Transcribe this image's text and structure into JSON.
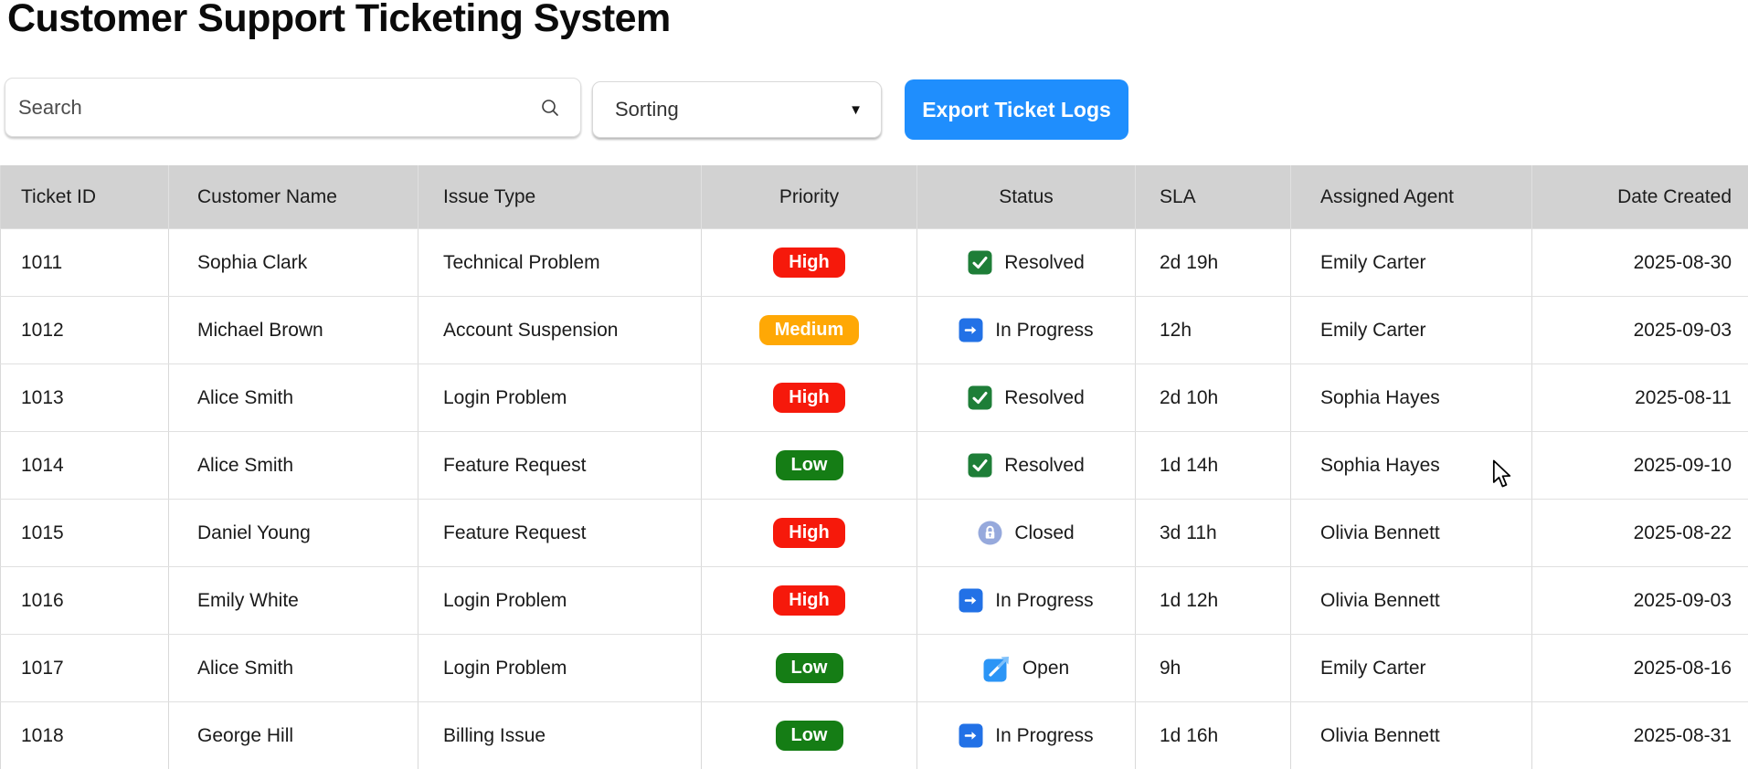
{
  "page": {
    "title": "Customer Support Ticketing System"
  },
  "controls": {
    "search_placeholder": "Search",
    "sorting_label": "Sorting",
    "export_button": "Export Ticket Logs"
  },
  "table": {
    "columns": [
      "Ticket ID",
      "Customer Name",
      "Issue Type",
      "Priority",
      "Status",
      "SLA",
      "Assigned Agent",
      "Date Created"
    ],
    "rows": [
      {
        "id": "1011",
        "customer": "Sophia Clark",
        "issue": "Technical Problem",
        "priority": "High",
        "status": "Resolved",
        "sla": "2d 19h",
        "agent": "Emily Carter",
        "date": "2025-08-30"
      },
      {
        "id": "1012",
        "customer": "Michael Brown",
        "issue": "Account Suspension",
        "priority": "Medium",
        "status": "In Progress",
        "sla": "12h",
        "agent": "Emily Carter",
        "date": "2025-09-03"
      },
      {
        "id": "1013",
        "customer": "Alice Smith",
        "issue": "Login Problem",
        "priority": "High",
        "status": "Resolved",
        "sla": "2d 10h",
        "agent": "Sophia Hayes",
        "date": "2025-08-11"
      },
      {
        "id": "1014",
        "customer": "Alice Smith",
        "issue": "Feature Request",
        "priority": "Low",
        "status": "Resolved",
        "sla": "1d 14h",
        "agent": "Sophia Hayes",
        "date": "2025-09-10"
      },
      {
        "id": "1015",
        "customer": "Daniel Young",
        "issue": "Feature Request",
        "priority": "High",
        "status": "Closed",
        "sla": "3d 11h",
        "agent": "Olivia Bennett",
        "date": "2025-08-22"
      },
      {
        "id": "1016",
        "customer": "Emily White",
        "issue": "Login Problem",
        "priority": "High",
        "status": "In Progress",
        "sla": "1d 12h",
        "agent": "Olivia Bennett",
        "date": "2025-09-03"
      },
      {
        "id": "1017",
        "customer": "Alice Smith",
        "issue": "Login Problem",
        "priority": "Low",
        "status": "Open",
        "sla": "9h",
        "agent": "Emily Carter",
        "date": "2025-08-16"
      },
      {
        "id": "1018",
        "customer": "George Hill",
        "issue": "Billing Issue",
        "priority": "Low",
        "status": "In Progress",
        "sla": "1d 16h",
        "agent": "Olivia Bennett",
        "date": "2025-08-31"
      }
    ]
  },
  "icons": {
    "search": "search-icon",
    "sorting_caret": "chevron-down-icon",
    "Resolved": "check-icon",
    "In Progress": "arrow-right-icon",
    "Open": "arrow-up-right-icon",
    "Closed": "lock-icon",
    "pointer": "mouse-cursor"
  },
  "colors": {
    "priority_high": "#f6190b",
    "priority_medium": "#ffa805",
    "priority_low": "#157d15",
    "status_resolved": "#1e7e38",
    "status_in_progress": "#2271e6",
    "status_open": "#2b95f6",
    "status_open_arrow_tip": "#7ec0fa",
    "status_closed": "#96a9dc",
    "export_button": "#1f8efd",
    "header_bg": "#d2d2d2"
  }
}
